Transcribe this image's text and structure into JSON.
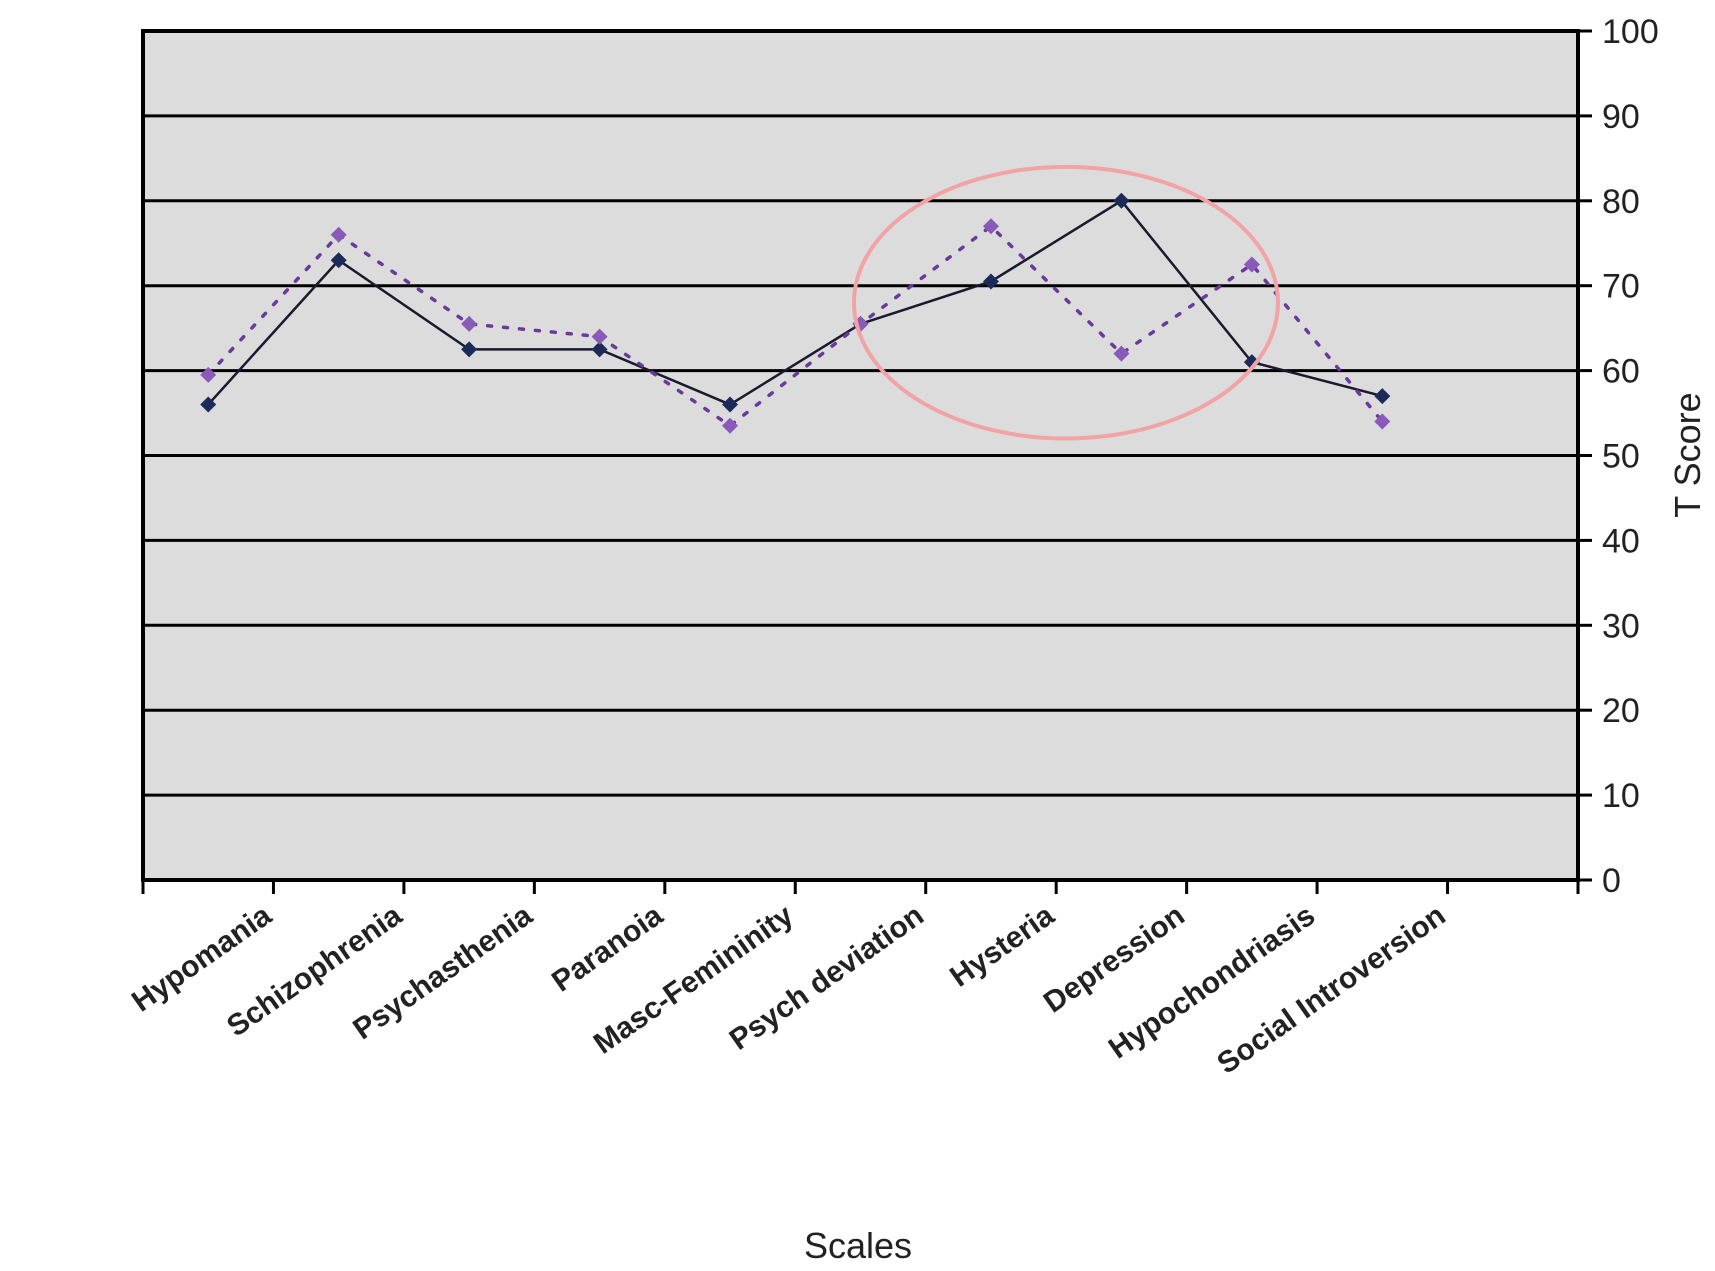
{
  "chart_data": {
    "type": "line",
    "title": "",
    "xlabel": "Scales",
    "ylabel": "T Score",
    "ylim": [
      0,
      100
    ],
    "yticks": [
      0,
      10,
      20,
      30,
      40,
      50,
      60,
      70,
      80,
      90,
      100
    ],
    "grid": true,
    "legend": "none",
    "categories": [
      "Hypomania",
      "Schizophrenia",
      "Psychasthenia",
      "Paranoia",
      "Masc-Femininity",
      "Psych deviation",
      "Hysteria",
      "Depression",
      "Hypochondriasis",
      "Social Introversion"
    ],
    "series": [
      {
        "style": "solid",
        "values": [
          56,
          73,
          62.5,
          62.5,
          56,
          65.5,
          70.5,
          80,
          61,
          57
        ]
      },
      {
        "style": "dotted",
        "values": [
          59.5,
          76,
          65.5,
          64,
          53.5,
          65.5,
          77,
          62,
          72.5,
          54
        ]
      }
    ],
    "annotations": [
      {
        "type": "ellipse",
        "x_range": [
          "Psych deviation",
          "Hypochondriasis"
        ],
        "y_range": [
          52,
          84
        ],
        "color": "#f2a3a6"
      }
    ],
    "colors": {
      "plot_bg": "#dcdcdc",
      "gridline": "#000000",
      "series_solid": "#1a1a2e",
      "series_dotted": "#6a3a9a",
      "marker_solid": "#1c2a5a",
      "marker_dotted": "#8a5ab8"
    }
  }
}
